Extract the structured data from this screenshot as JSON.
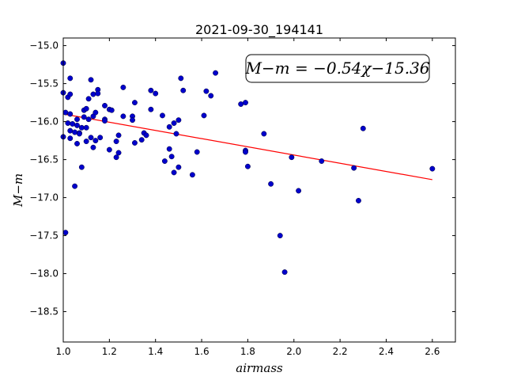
{
  "chart_data": {
    "type": "scatter",
    "title": "2021-09-30_194141",
    "xlabel": "airmass",
    "ylabel": "M−m",
    "xlim": [
      1.0,
      2.7
    ],
    "ylim": [
      -18.9,
      -14.9
    ],
    "y_inverted": true,
    "grid": false,
    "x_ticks": [
      1.0,
      1.2,
      1.4,
      1.6,
      1.8,
      2.0,
      2.2,
      2.4,
      2.6
    ],
    "x_tick_labels": [
      "1.0",
      "1.2",
      "1.4",
      "1.6",
      "1.8",
      "2.0",
      "2.2",
      "2.4",
      "2.6"
    ],
    "y_ticks": [
      -15.0,
      -15.5,
      -16.0,
      -16.5,
      -17.0,
      -17.5,
      -18.0,
      -18.5
    ],
    "y_tick_labels": [
      "−15.0",
      "−15.5",
      "−16.0",
      "−16.5",
      "−17.0",
      "−17.5",
      "−18.0",
      "−18.5"
    ],
    "annotation": "M−m = −0.54χ−15.36",
    "point_color": "#0000cc",
    "fit": {
      "slope": -0.54,
      "intercept": -15.36,
      "x_range": [
        1.0,
        2.6
      ],
      "color": "#ff0000"
    },
    "points": [
      [
        1.0,
        -15.23
      ],
      [
        1.0,
        -15.62
      ],
      [
        1.01,
        -15.88
      ],
      [
        1.0,
        -16.2
      ],
      [
        1.01,
        -17.46
      ],
      [
        1.02,
        -15.68
      ],
      [
        1.02,
        -16.02
      ],
      [
        1.03,
        -15.43
      ],
      [
        1.03,
        -15.64
      ],
      [
        1.03,
        -15.9
      ],
      [
        1.03,
        -16.12
      ],
      [
        1.03,
        -16.22
      ],
      [
        1.04,
        -16.03
      ],
      [
        1.05,
        -16.85
      ],
      [
        1.05,
        -16.14
      ],
      [
        1.06,
        -16.05
      ],
      [
        1.06,
        -16.29
      ],
      [
        1.06,
        -15.97
      ],
      [
        1.07,
        -16.15
      ],
      [
        1.07,
        -16.16
      ],
      [
        1.08,
        -16.6
      ],
      [
        1.08,
        -16.08
      ],
      [
        1.09,
        -15.85
      ],
      [
        1.09,
        -15.94
      ],
      [
        1.1,
        -15.83
      ],
      [
        1.1,
        -16.08
      ],
      [
        1.1,
        -16.26
      ],
      [
        1.11,
        -15.7
      ],
      [
        1.11,
        -15.97
      ],
      [
        1.12,
        -15.45
      ],
      [
        1.12,
        -16.21
      ],
      [
        1.13,
        -15.64
      ],
      [
        1.13,
        -16.34
      ],
      [
        1.13,
        -15.93
      ],
      [
        1.14,
        -15.88
      ],
      [
        1.14,
        -16.25
      ],
      [
        1.15,
        -15.58
      ],
      [
        1.15,
        -15.63
      ],
      [
        1.16,
        -16.21
      ],
      [
        1.18,
        -15.97
      ],
      [
        1.18,
        -15.99
      ],
      [
        1.18,
        -15.79
      ],
      [
        1.2,
        -15.84
      ],
      [
        1.2,
        -16.37
      ],
      [
        1.21,
        -15.85
      ],
      [
        1.23,
        -16.26
      ],
      [
        1.23,
        -16.47
      ],
      [
        1.24,
        -16.41
      ],
      [
        1.24,
        -16.18
      ],
      [
        1.26,
        -15.55
      ],
      [
        1.26,
        -15.93
      ],
      [
        1.3,
        -15.93
      ],
      [
        1.3,
        -15.98
      ],
      [
        1.31,
        -15.75
      ],
      [
        1.31,
        -16.28
      ],
      [
        1.34,
        -16.24
      ],
      [
        1.35,
        -16.15
      ],
      [
        1.36,
        -16.18
      ],
      [
        1.38,
        -15.59
      ],
      [
        1.38,
        -15.84
      ],
      [
        1.4,
        -15.63
      ],
      [
        1.43,
        -15.92
      ],
      [
        1.44,
        -16.52
      ],
      [
        1.46,
        -16.36
      ],
      [
        1.46,
        -16.07
      ],
      [
        1.47,
        -16.46
      ],
      [
        1.48,
        -16.02
      ],
      [
        1.48,
        -16.67
      ],
      [
        1.49,
        -16.16
      ],
      [
        1.5,
        -16.6
      ],
      [
        1.5,
        -15.98
      ],
      [
        1.51,
        -15.43
      ],
      [
        1.52,
        -15.59
      ],
      [
        1.56,
        -16.7
      ],
      [
        1.58,
        -16.4
      ],
      [
        1.61,
        -15.92
      ],
      [
        1.62,
        -15.6
      ],
      [
        1.64,
        -15.66
      ],
      [
        1.66,
        -15.36
      ],
      [
        1.77,
        -15.77
      ],
      [
        1.79,
        -15.75
      ],
      [
        1.79,
        -16.38
      ],
      [
        1.79,
        -16.4
      ],
      [
        1.8,
        -16.59
      ],
      [
        1.87,
        -16.16
      ],
      [
        1.9,
        -16.82
      ],
      [
        1.94,
        -17.5
      ],
      [
        1.96,
        -17.98
      ],
      [
        1.99,
        -16.47
      ],
      [
        2.02,
        -16.91
      ],
      [
        2.12,
        -16.52
      ],
      [
        2.26,
        -16.61
      ],
      [
        2.28,
        -17.04
      ],
      [
        2.3,
        -16.09
      ],
      [
        2.6,
        -16.62
      ]
    ]
  }
}
